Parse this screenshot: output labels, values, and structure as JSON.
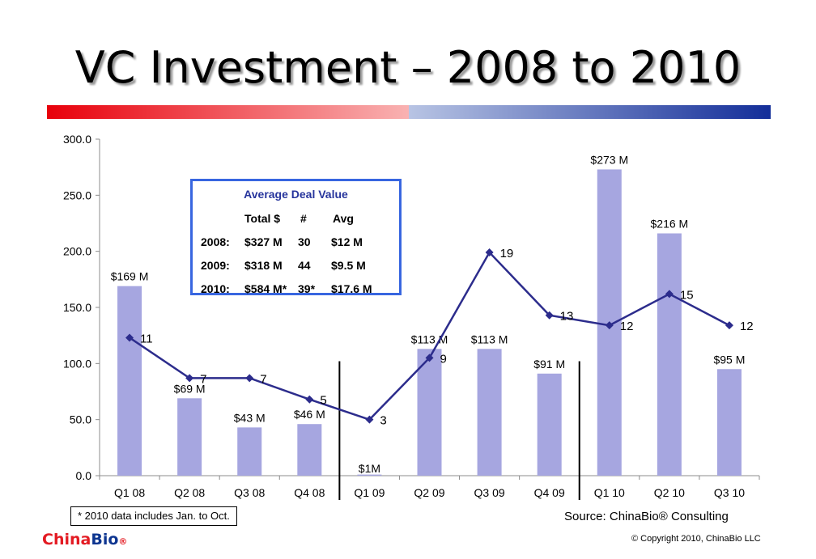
{
  "title": "VC Investment – 2008 to 2010",
  "colors": {
    "bar": "#a6a6e0",
    "line": "#2c2c8c",
    "box_border": "#3866e0",
    "box_title": "#26349c"
  },
  "avg_box": {
    "title": "Average Deal Value",
    "headers": [
      "Total $",
      "#",
      "Avg"
    ],
    "rows": [
      {
        "year": "2008:",
        "total": "$327 M",
        "count": "30",
        "avg": "$12 M"
      },
      {
        "year": "2009:",
        "total": "$318 M",
        "count": "44",
        "avg": "$9.5 M"
      },
      {
        "year": "2010:",
        "total": "$584 M*",
        "count": "39*",
        "avg": "$17.6 M"
      }
    ]
  },
  "note": "* 2010 data includes Jan. to Oct.",
  "source": "Source: ChinaBio® Consulting",
  "copyright": "© Copyright 2010, ChinaBio LLC",
  "brand": {
    "part1": "China",
    "part2": "Bio",
    "reg": "®"
  },
  "chart_data": {
    "type": "bar",
    "categories": [
      "Q1 08",
      "Q2 08",
      "Q3 08",
      "Q4 08",
      "Q1 09",
      "Q2 09",
      "Q3 09",
      "Q4 09",
      "Q1 10",
      "Q2 10",
      "Q3 10"
    ],
    "series": [
      {
        "type": "bar",
        "values": [
          169,
          69,
          43,
          46,
          1,
          113,
          113,
          91,
          273,
          216,
          95
        ],
        "labels": [
          "$169 M",
          "$69 M",
          "$43 M",
          "$46 M",
          "$1M",
          "$113 M",
          "$113 M",
          "$91 M",
          "$273 M",
          "$216 M",
          "$95 M"
        ]
      },
      {
        "type": "line",
        "values": [
          11,
          7,
          7,
          5,
          3,
          9,
          19,
          13,
          12,
          15,
          12
        ],
        "labels": [
          "11",
          "7",
          "7",
          "5",
          "3",
          "9",
          "19",
          "13",
          "12",
          "15",
          "12"
        ]
      }
    ],
    "yticks": [
      "0.0",
      "50.0",
      "100.0",
      "150.0",
      "200.0",
      "250.0",
      "300.0"
    ],
    "ylim": [
      0,
      300
    ],
    "year_dividers_after": [
      "Q4 08",
      "Q4 09"
    ]
  }
}
